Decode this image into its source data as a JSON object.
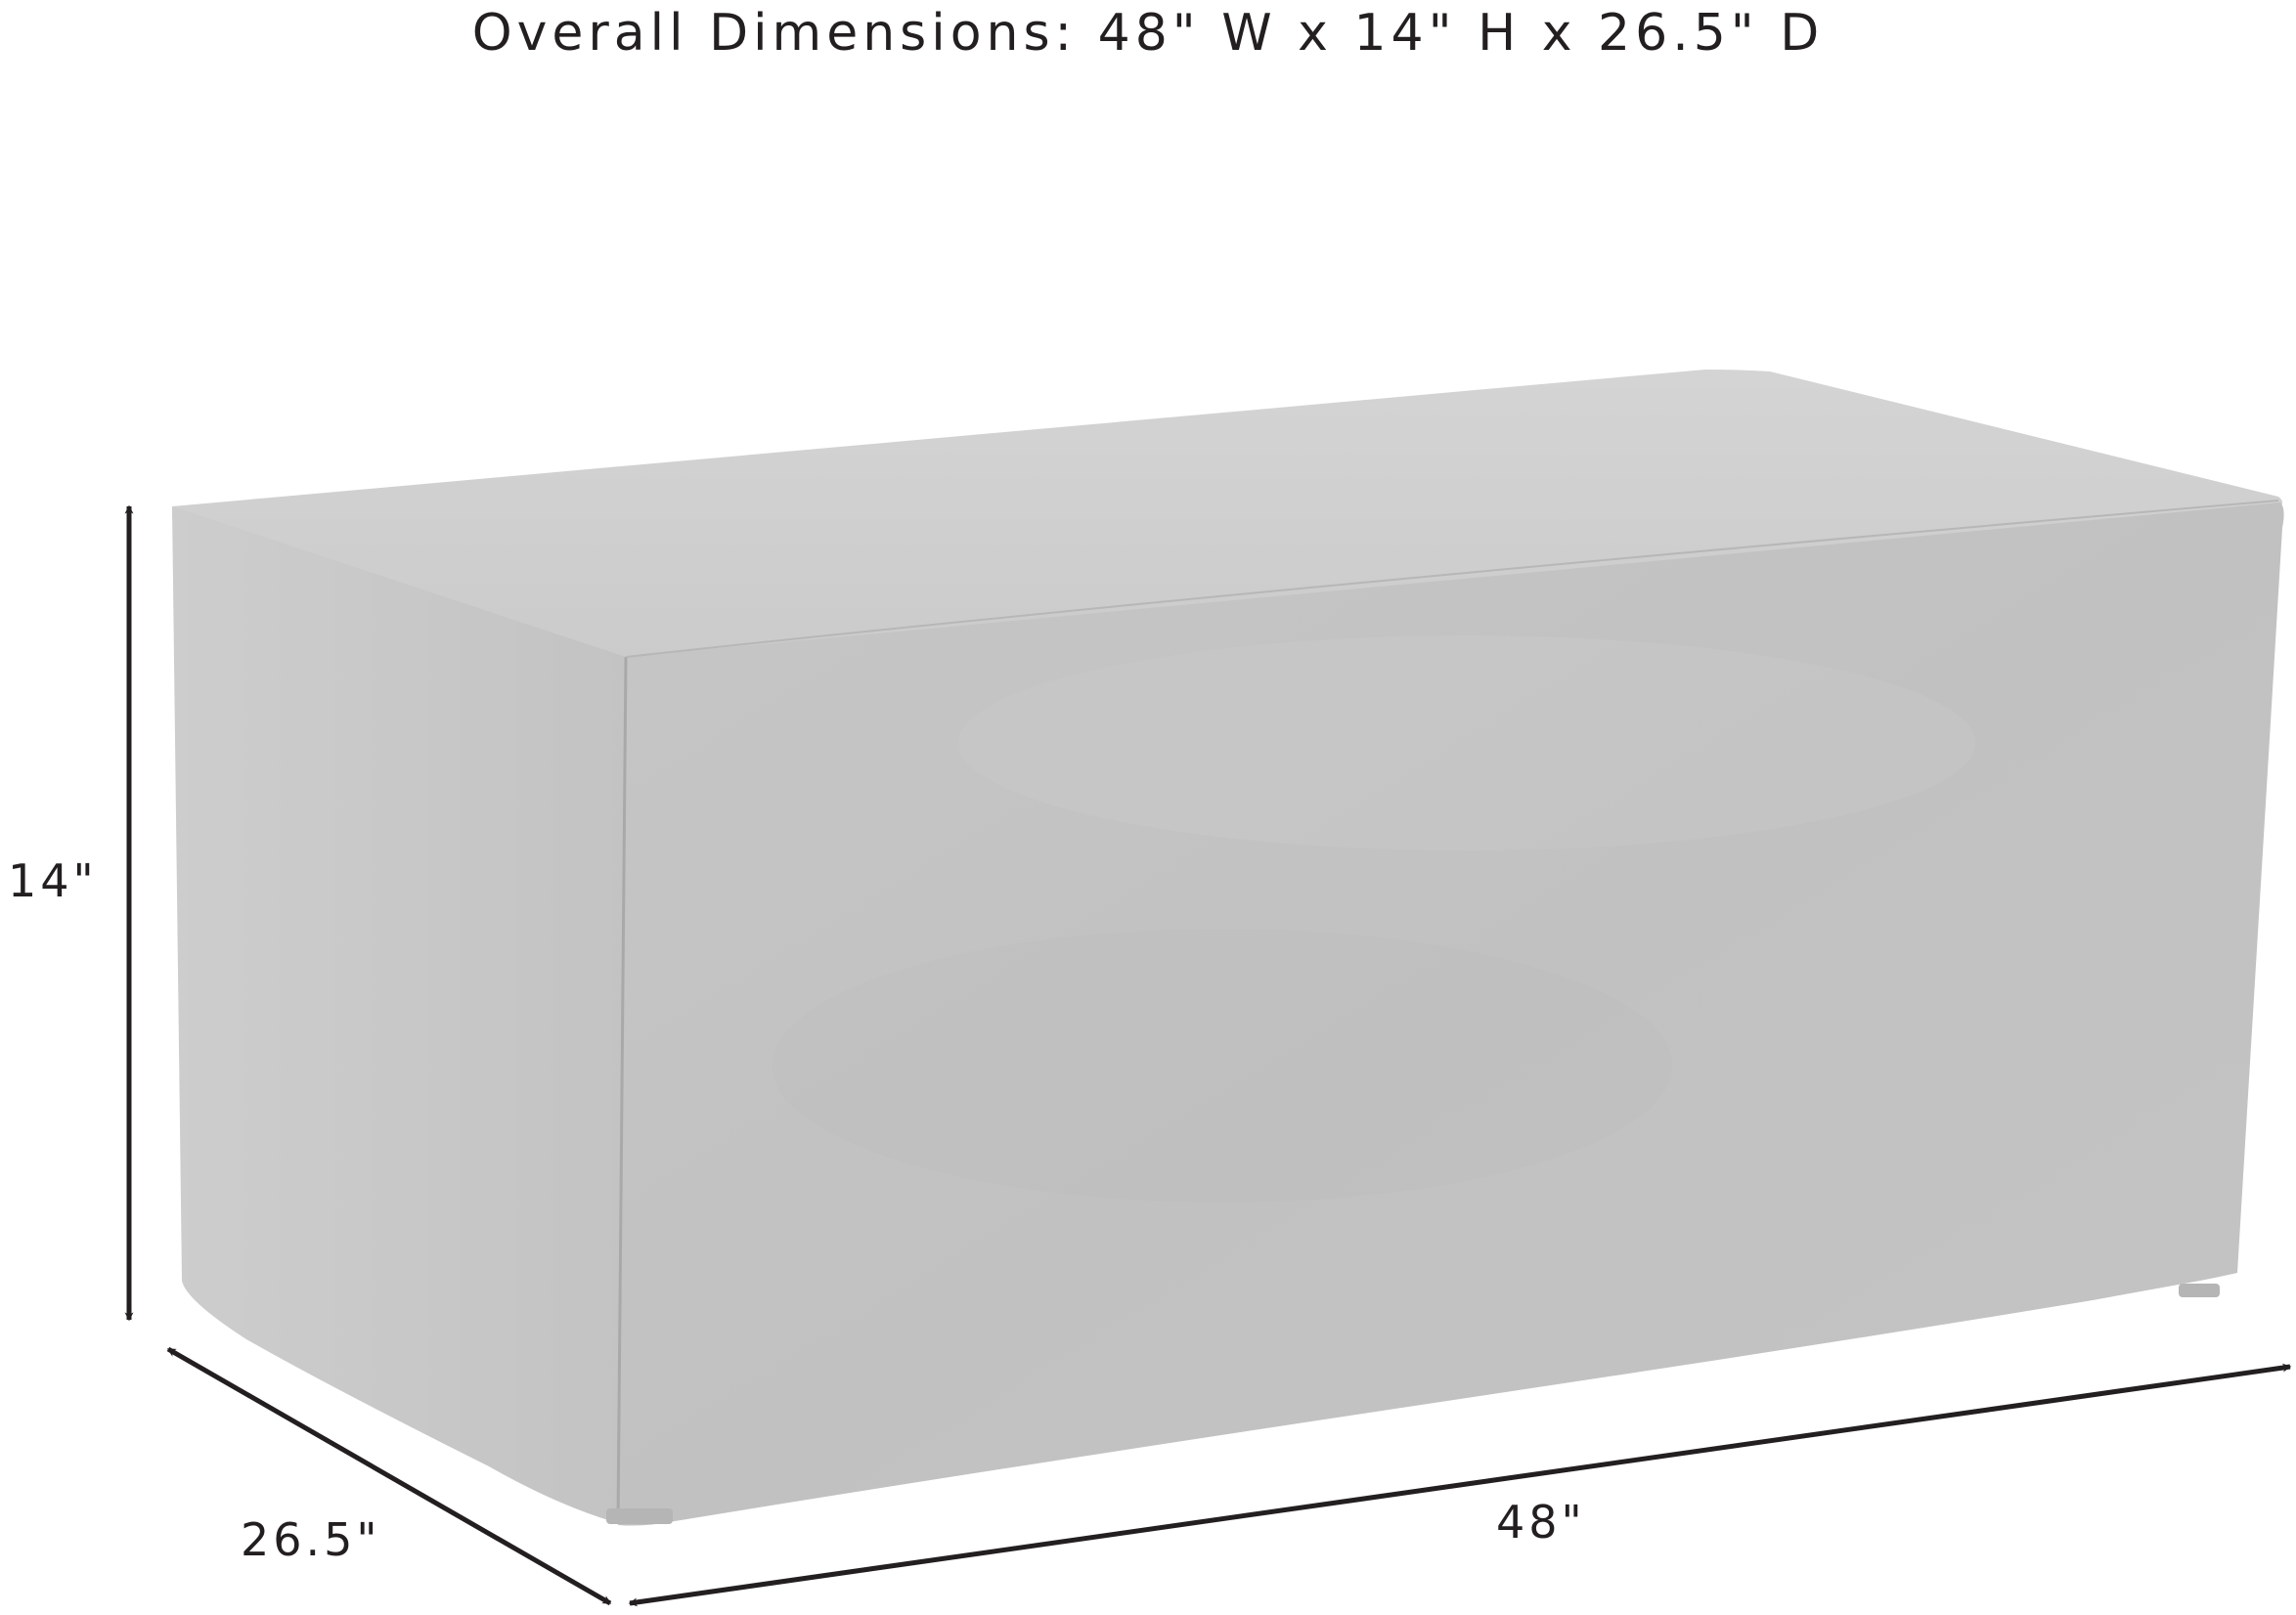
{
  "title": "Overall Dimensions: 48\" W x 14\" H x 26.5\" D",
  "dimensions": {
    "height_label": "14\"",
    "depth_label": "26.5\"",
    "width_label": "48\""
  },
  "colors": {
    "cover_front": "#c3c3c3",
    "cover_side": "#c9c9c9",
    "cover_top": "#cfcfcf",
    "line": "#231f20",
    "background": "#ffffff"
  }
}
